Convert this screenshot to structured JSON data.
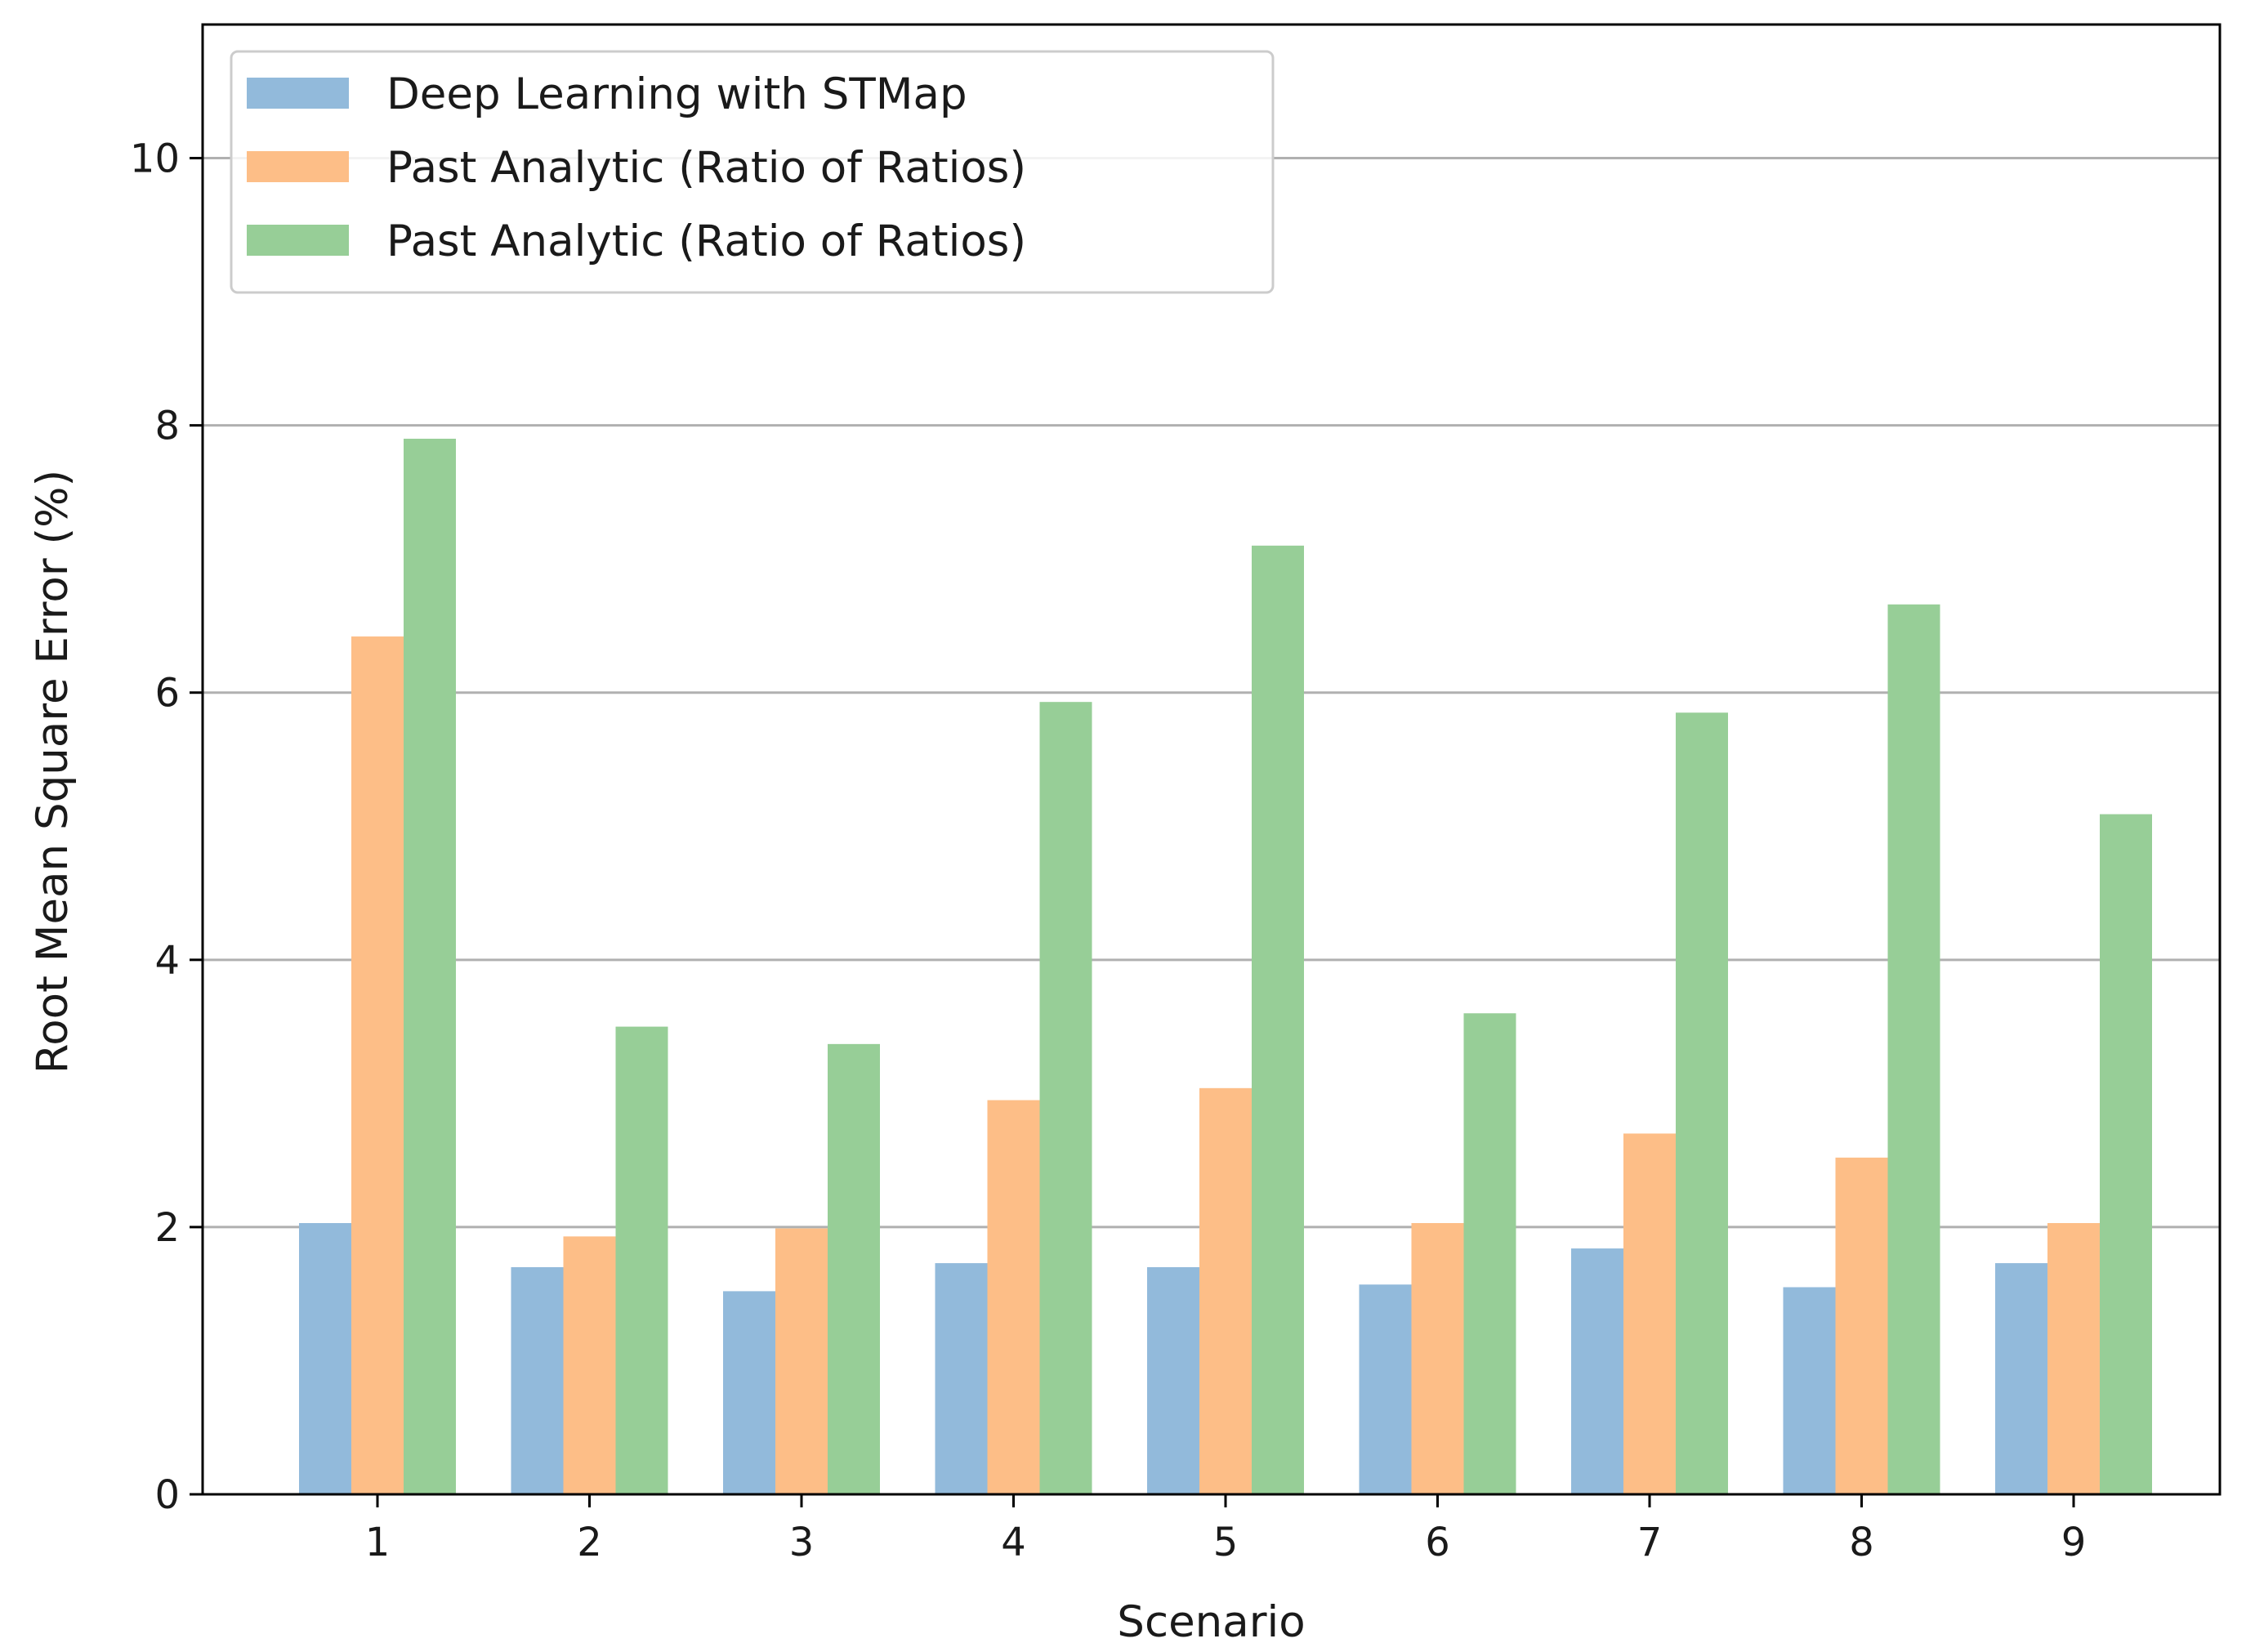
{
  "chart_data": {
    "type": "bar",
    "title": "",
    "xlabel": "Scenario",
    "ylabel": "Root Mean Square Error (%)",
    "categories": [
      "1",
      "2",
      "3",
      "4",
      "5",
      "6",
      "7",
      "8",
      "9"
    ],
    "ylim": [
      0,
      11
    ],
    "yticks": [
      0,
      2,
      4,
      6,
      8,
      10
    ],
    "ytick_labels": [
      "0",
      "2",
      "4",
      "6",
      "8",
      "10"
    ],
    "grid": "horizontal",
    "legend_position": "top-left",
    "series": [
      {
        "name": "Deep Learning with STMap",
        "color": "#92badb",
        "values": [
          2.03,
          1.7,
          1.52,
          1.73,
          1.7,
          1.57,
          1.84,
          1.55,
          1.73
        ]
      },
      {
        "name": "Past Analytic (Ratio of Ratios)",
        "color": "#fdbe87",
        "values": [
          6.42,
          1.93,
          1.99,
          2.95,
          3.04,
          2.03,
          2.7,
          2.52,
          2.03
        ]
      },
      {
        "name": "Past Analytic (Ratio of Ratios)",
        "color": "#97ce97",
        "values": [
          7.9,
          3.5,
          3.37,
          5.93,
          7.1,
          3.6,
          5.85,
          6.66,
          5.09
        ]
      }
    ]
  }
}
